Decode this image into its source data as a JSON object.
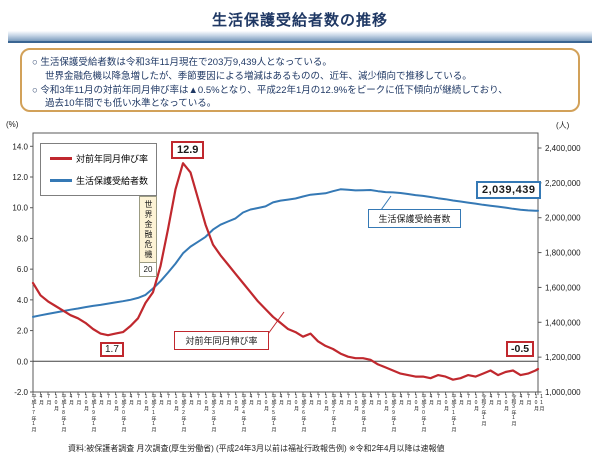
{
  "page": {
    "title": "生活保護受給者数の推移",
    "source": "資料:被保護者調査 月次調査(厚生労働省) (平成24年3月以前は福祉行政報告例) ※令和2年4月以降は速報値"
  },
  "summary": {
    "lines": [
      "○ 生活保護受給者数は令和3年11月現在で203万9,439人となっている。",
      "世界金融危機以降急増したが、季節要因による増減はあるものの、近年、減少傾向で推移している。",
      "○ 令和3年11月の対前年同月伸び率は▲0.5%となり、平成22年1月の12.9%をピークに低下傾向が継続しており、",
      "過去10年間でも低い水準となっている。"
    ]
  },
  "chart_data": {
    "type": "line",
    "title": "生活保護受給者数の推移",
    "axes": {
      "left": {
        "unit": "(%)",
        "min": -2,
        "max": 14,
        "step": 2,
        "tick_labels": [
          "14.0",
          "12.0",
          "10.0",
          "8.0",
          "6.0",
          "4.0",
          "2.0",
          "0.0",
          "-2.0"
        ]
      },
      "right": {
        "unit": "(人)",
        "min": 1000000,
        "max": 2400000,
        "step": 200000,
        "tick_labels": [
          "2,400,000",
          "2,200,000",
          "2,000,000",
          "1,800,000",
          "1,600,000",
          "1,400,000",
          "1,200,000",
          "1,000,000"
        ]
      }
    },
    "x_tick_labels": [
      "平成17年1月",
      "4月",
      "7月",
      "10月",
      "平成18年1月",
      "4月",
      "7月",
      "10月",
      "平成19年1月",
      "4月",
      "7月",
      "10月",
      "平成20年1月",
      "4月",
      "7月",
      "10月",
      "平成21年1月",
      "4月",
      "7月",
      "10月",
      "平成22年1月",
      "4月",
      "7月",
      "10月",
      "平成23年1月",
      "4月",
      "7月",
      "10月",
      "平成24年1月",
      "4月",
      "7月",
      "10月",
      "平成25年1月",
      "4月",
      "7月",
      "10月",
      "平成26年1月",
      "4月",
      "7月",
      "10月",
      "平成27年1月",
      "4月",
      "7月",
      "10月",
      "平成28年1月",
      "4月",
      "7月",
      "10月",
      "平成29年1月",
      "4月",
      "7月",
      "10月",
      "平成30年1月",
      "4月",
      "7月",
      "10月",
      "平成31年1月",
      "4月",
      "7月",
      "10月",
      "令和2年1月",
      "4月",
      "7月",
      "10月",
      "令和3年1月",
      "4月",
      "7月",
      "10月",
      "11月"
    ],
    "series": [
      {
        "name": "対前年同月伸び率",
        "axis": "left",
        "color": "#c0282e",
        "values": [
          5.1,
          4.3,
          3.9,
          3.6,
          3.3,
          3.0,
          2.8,
          2.5,
          2.1,
          1.8,
          1.7,
          1.8,
          1.9,
          2.3,
          2.8,
          3.8,
          4.5,
          6.2,
          8.6,
          11.2,
          12.9,
          12.3,
          10.6,
          8.9,
          7.6,
          6.9,
          6.3,
          5.7,
          5.1,
          4.5,
          3.9,
          3.4,
          2.9,
          2.5,
          2.1,
          1.9,
          1.6,
          1.8,
          1.3,
          1.0,
          0.8,
          0.5,
          0.3,
          0.2,
          0.2,
          0.1,
          -0.2,
          -0.4,
          -0.6,
          -0.8,
          -0.9,
          -1.0,
          -1.0,
          -1.1,
          -0.9,
          -1.0,
          -1.2,
          -1.1,
          -0.9,
          -1.0,
          -0.8,
          -0.6,
          -0.9,
          -0.7,
          -0.6,
          -0.9,
          -0.8,
          -0.6,
          -0.5
        ]
      },
      {
        "name": "生活保護受給者数",
        "axis": "right",
        "color": "#3579b5",
        "values": [
          1431000,
          1440000,
          1448000,
          1456000,
          1464000,
          1472000,
          1479000,
          1487000,
          1494000,
          1500000,
          1507000,
          1514000,
          1521000,
          1529000,
          1540000,
          1557000,
          1594000,
          1636000,
          1685000,
          1737000,
          1796000,
          1834000,
          1862000,
          1890000,
          1932000,
          1960000,
          1978000,
          1996000,
          2030000,
          2047000,
          2056000,
          2065000,
          2088000,
          2098000,
          2104000,
          2110000,
          2122000,
          2132000,
          2136000,
          2140000,
          2152000,
          2163000,
          2160000,
          2157000,
          2158000,
          2159000,
          2152000,
          2147000,
          2145000,
          2142000,
          2136000,
          2130000,
          2125000,
          2119000,
          2112000,
          2106000,
          2099000,
          2093000,
          2087000,
          2081000,
          2074000,
          2069000,
          2064000,
          2058000,
          2051000,
          2046000,
          2042000,
          2040000,
          2039439
        ]
      }
    ],
    "annotations": {
      "peak_label": "12.9",
      "trough_label": "1.7",
      "latest_rate_label": "-0.5",
      "latest_count_label": "2,039,439",
      "callout_rate": "対前年同月伸び率",
      "callout_count": "生活保護受給者数",
      "crisis_label": "世界金融危機",
      "crisis_sub_label": "20"
    },
    "colors": {
      "rate_line": "#c0282e",
      "count_line": "#3579b5",
      "summary_border": "#d2a159",
      "title_navy": "#1f3864"
    },
    "layout_hints": {
      "grid": false,
      "legend_position": "top-left inside plot"
    }
  }
}
